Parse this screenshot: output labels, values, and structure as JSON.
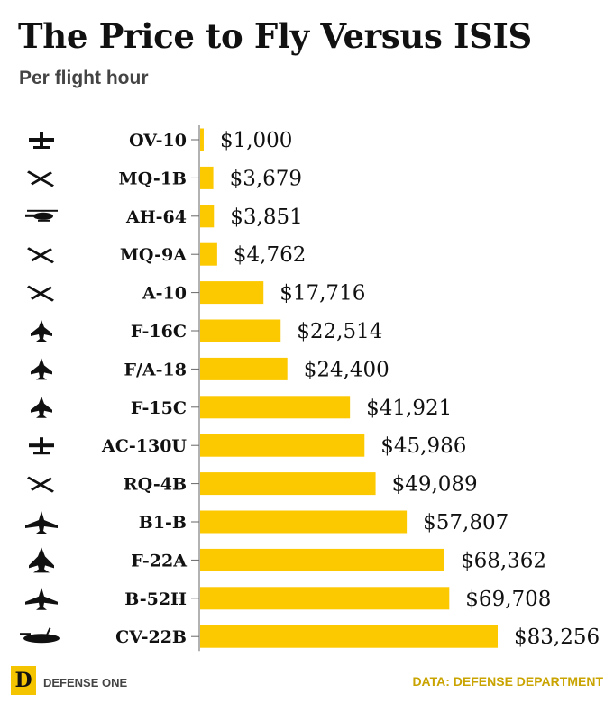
{
  "chart_data": {
    "type": "bar",
    "orientation": "horizontal",
    "title": "The Price to Fly Versus ISIS",
    "subtitle": "Per flight hour",
    "categories": [
      "OV-10",
      "MQ-1B",
      "AH-64",
      "MQ-9A",
      "A-10",
      "F-16C",
      "F/A-18",
      "F-15C",
      "AC-130U",
      "RQ-4B",
      "B1-B",
      "F-22A",
      "B-52H",
      "CV-22B"
    ],
    "values": [
      1000,
      3679,
      3851,
      4762,
      17716,
      22514,
      24400,
      41921,
      45986,
      49089,
      57807,
      68362,
      69708,
      83256
    ],
    "value_labels": [
      "$1,000",
      "$3,679",
      "$3,851",
      "$4,762",
      "$17,716",
      "$22,514",
      "$24,400",
      "$41,921",
      "$45,986",
      "$49,089",
      "$57,807",
      "$68,362",
      "$69,708",
      "$83,256"
    ],
    "icons": [
      "ov10-plane-icon",
      "mq1b-drone-icon",
      "ah64-helicopter-icon",
      "mq9a-drone-icon",
      "a10-jet-icon",
      "f16c-jet-icon",
      "fa18-jet-icon",
      "f15c-jet-icon",
      "ac130u-plane-icon",
      "rq4b-drone-icon",
      "b1b-bomber-icon",
      "f22a-jet-icon",
      "b52h-bomber-icon",
      "cv22b-tiltrotor-icon"
    ],
    "bar_color": "#fcc800",
    "grid": false,
    "legend": "none"
  },
  "footer": {
    "logo_letter": "D",
    "brand": "DEFENSE ONE",
    "source": "DATA: DEFENSE DEPARTMENT"
  }
}
